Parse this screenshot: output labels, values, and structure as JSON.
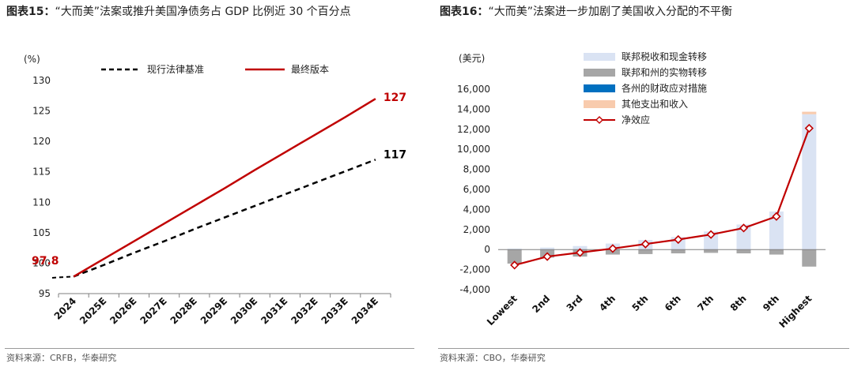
{
  "left": {
    "title_prefix": "图表15：",
    "title_text": "“大而美”法案或推升美国净债务占 GDP 比例近 30 个百分点",
    "source": "资料来源：CRFB，华泰研究",
    "chart_data": {
      "type": "line",
      "ylabel": "(%)",
      "ylim": [
        95,
        130
      ],
      "yticks": [
        95,
        100,
        105,
        110,
        115,
        120,
        125,
        130
      ],
      "categories": [
        "2024",
        "2025E",
        "2026E",
        "2027E",
        "2028E",
        "2029E",
        "2030E",
        "2031E",
        "2032E",
        "2033E",
        "2034E"
      ],
      "legend_position": "top",
      "series": [
        {
          "name": "现行法律基准",
          "style": "dashed",
          "color": "#000000",
          "values": [
            97.8,
            99.7,
            101.7,
            103.6,
            105.6,
            107.5,
            109.4,
            111.3,
            113.2,
            115.1,
            117.0
          ]
        },
        {
          "name": "最终版本",
          "style": "solid",
          "color": "#C00000",
          "values": [
            97.8,
            100.7,
            103.6,
            106.5,
            109.4,
            112.3,
            115.3,
            118.2,
            121.1,
            124.0,
            127.0
          ]
        }
      ],
      "annotations": [
        {
          "text": "97.8",
          "color": "#C00000"
        },
        {
          "text": "127",
          "color": "#C00000"
        },
        {
          "text": "117",
          "color": "#000000"
        }
      ]
    }
  },
  "right": {
    "title_prefix": "图表16：",
    "title_text": "“大而美”法案进一步加剧了美国收入分配的不平衡",
    "source": "资料来源：CBO，华泰研究",
    "chart_data": {
      "type": "bar",
      "ylabel": "(美元)",
      "ylim": [
        -4000,
        16000
      ],
      "yticks": [
        -4000,
        -2000,
        0,
        2000,
        4000,
        6000,
        8000,
        10000,
        12000,
        14000,
        16000
      ],
      "ytick_labels": [
        "-4,000",
        "-2,000",
        "0",
        "2,000",
        "4,000",
        "6,000",
        "8,000",
        "10,000",
        "12,000",
        "14,000",
        "16,000"
      ],
      "categories": [
        "Lowest",
        "2nd",
        "3rd",
        "4th",
        "5th",
        "6th",
        "7th",
        "8th",
        "9th",
        "Highest"
      ],
      "legend_position": "top",
      "series": [
        {
          "name": "联邦税收和现金转移",
          "kind": "bar",
          "color": "#DAE3F3",
          "values": [
            100,
            200,
            350,
            600,
            950,
            1250,
            1800,
            2500,
            3800,
            13500
          ]
        },
        {
          "name": "联邦和州的实物转移",
          "kind": "bar",
          "color": "#A6A6A6",
          "values": [
            -1400,
            -800,
            -700,
            -500,
            -450,
            -380,
            -330,
            -380,
            -500,
            -1700
          ]
        },
        {
          "name": "各州的财政应对措施",
          "kind": "bar",
          "color": "#0070C0",
          "values": [
            0,
            0,
            0,
            0,
            0,
            0,
            0,
            0,
            0,
            0
          ]
        },
        {
          "name": "其他支出和收入",
          "kind": "bar",
          "color": "#F8CBAD",
          "values": [
            0,
            0,
            0,
            0,
            0,
            0,
            0,
            0,
            0,
            250
          ]
        },
        {
          "name": "净效应",
          "kind": "line",
          "color": "#C00000",
          "values": [
            -1550,
            -700,
            -300,
            100,
            550,
            1000,
            1500,
            2150,
            3300,
            12100
          ]
        }
      ]
    }
  }
}
